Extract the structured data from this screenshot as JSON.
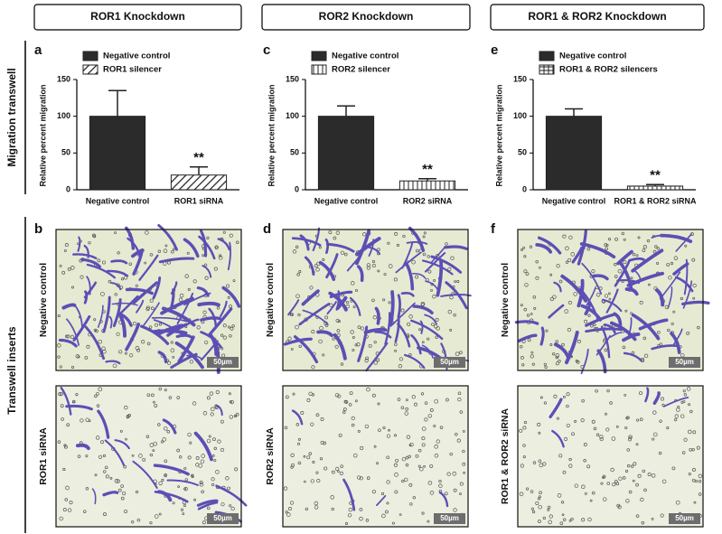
{
  "column_headers": [
    "ROR1 Knockdown",
    "ROR2 Knockdown",
    "ROR1 & ROR2 Knockdown"
  ],
  "row_labels": [
    "Migration transwell",
    "Transwell inserts"
  ],
  "chart_data": [
    {
      "type": "bar",
      "panel": "a",
      "y_label": "Relative percent migration",
      "categories": [
        "Negative control",
        "ROR1 siRNA"
      ],
      "series": [
        {
          "name": "Negative control",
          "color": "#2b2b2b",
          "pattern": "solid",
          "values": [
            100,
            null
          ],
          "errors": [
            35,
            null
          ]
        },
        {
          "name": "ROR1 silencer",
          "color": "#2b2b2b",
          "pattern": "diagonal",
          "values": [
            null,
            20
          ],
          "errors": [
            null,
            11
          ]
        }
      ],
      "ylim": [
        0,
        150
      ],
      "yticks": [
        0,
        50,
        100,
        150
      ],
      "significance": "**"
    },
    {
      "type": "bar",
      "panel": "c",
      "y_label": "Relative percent migration",
      "categories": [
        "Negative control",
        "ROR2 siRNA"
      ],
      "series": [
        {
          "name": "Negative control",
          "color": "#2b2b2b",
          "pattern": "solid",
          "values": [
            100,
            null
          ],
          "errors": [
            14,
            null
          ]
        },
        {
          "name": "ROR2 silencer",
          "color": "#2b2b2b",
          "pattern": "vertical",
          "values": [
            null,
            12
          ],
          "errors": [
            null,
            3
          ]
        }
      ],
      "ylim": [
        0,
        150
      ],
      "yticks": [
        0,
        50,
        100,
        150
      ],
      "significance": "**"
    },
    {
      "type": "bar",
      "panel": "e",
      "y_label": "Relative percent migration",
      "categories": [
        "Negative control",
        "ROR1 & ROR2 siRNA"
      ],
      "series": [
        {
          "name": "Negative control",
          "color": "#2b2b2b",
          "pattern": "solid",
          "values": [
            100,
            null
          ],
          "errors": [
            10,
            null
          ]
        },
        {
          "name": "ROR1 & ROR2 silencers",
          "color": "#2b2b2b",
          "pattern": "grid",
          "values": [
            null,
            5
          ],
          "errors": [
            null,
            2
          ]
        }
      ],
      "ylim": [
        0,
        150
      ],
      "yticks": [
        0,
        50,
        100,
        150
      ],
      "significance": "**"
    }
  ],
  "image_panels": [
    {
      "panel": "b",
      "images": [
        {
          "label": "Negative control",
          "scale_bar": "50µm"
        },
        {
          "label": "ROR1 siRNA",
          "scale_bar": "50µm"
        }
      ]
    },
    {
      "panel": "d",
      "images": [
        {
          "label": "Negative control",
          "scale_bar": "50µm"
        },
        {
          "label": "ROR2 siRNA",
          "scale_bar": "50µm"
        }
      ]
    },
    {
      "panel": "f",
      "images": [
        {
          "label": "Negative control",
          "scale_bar": "50µm"
        },
        {
          "label": "ROR1 & ROR2 siRNA",
          "scale_bar": "50µm"
        }
      ]
    }
  ]
}
